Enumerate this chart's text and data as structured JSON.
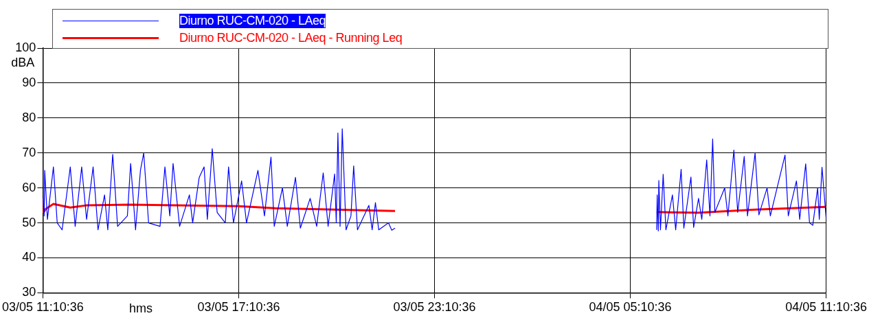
{
  "chart_data": {
    "type": "line",
    "xlabel": "hms",
    "ylabel": "dBA",
    "xlim": [
      "--05-03T11:10:36",
      "--05-04T11:10:36"
    ],
    "xticks": [
      {
        "value": "--05-03T11:10:36",
        "label": "03/05 11:10:36"
      },
      {
        "value": "--05-03T17:10:36",
        "label": "03/05 17:10:36"
      },
      {
        "value": "--05-03T23:10:36",
        "label": "03/05 23:10:36"
      },
      {
        "value": "--05-04T05:10:36",
        "label": "04/05 05:10:36"
      },
      {
        "value": "--05-04T11:10:36",
        "label": "04/05 11:10:36"
      }
    ],
    "ylim": [
      30,
      100
    ],
    "yticks": [
      30,
      40,
      50,
      60,
      70,
      80,
      90,
      100
    ],
    "grid": true,
    "legend": "top",
    "marker": "none",
    "line_style": "solid",
    "series": [
      {
        "name": "Diurno RUC-CM-020 - LAeq",
        "color": "#0000ff",
        "x": [
          "--05-03T11:10:36",
          "--05-03T11:13",
          "--05-03T11:14",
          "--05-03T11:19",
          "--05-03T11:30",
          "--05-03T11:37",
          "--05-03T11:46",
          "--05-03T12:01",
          "--05-03T12:10",
          "--05-03T12:22",
          "--05-03T12:31",
          "--05-03T12:43",
          "--05-03T12:52",
          "--05-03T13:04",
          "--05-03T13:10",
          "--05-03T13:19",
          "--05-03T13:28",
          "--05-03T13:46",
          "--05-03T13:52",
          "--05-03T14:01",
          "--05-03T14:10",
          "--05-03T14:16",
          "--05-03T14:25",
          "--05-03T14:46",
          "--05-03T14:55",
          "--05-03T15:04",
          "--05-03T15:10",
          "--05-03T15:22",
          "--05-03T15:40",
          "--05-03T15:46",
          "--05-03T15:58",
          "--05-03T16:07",
          "--05-03T16:13",
          "--05-03T16:22",
          "--05-03T16:31",
          "--05-03T16:46",
          "--05-03T16:52",
          "--05-03T17:01",
          "--05-03T17:16",
          "--05-03T17:25",
          "--05-03T17:46",
          "--05-03T17:58",
          "--05-03T18:10",
          "--05-03T18:16",
          "--05-03T18:31",
          "--05-03T18:40",
          "--05-03T18:55",
          "--05-03T19:04",
          "--05-03T19:22",
          "--05-03T19:34",
          "--05-03T19:46",
          "--05-03T19:55",
          "--05-03T20:07",
          "--05-03T20:10",
          "--05-03T20:13",
          "--05-03T20:17",
          "--05-03T20:21",
          "--05-03T20:28",
          "--05-03T20:37",
          "--05-03T20:42",
          "--05-03T20:49",
          "--05-03T21:10",
          "--05-03T21:16",
          "--05-03T21:22",
          "--05-03T21:28",
          "--05-03T21:46",
          "--05-03T21:52",
          "--05-03T21:58",
          "--05-04T01:58",
          "--05-04T05:59",
          "--05-04T06:00",
          "--05-04T06:02",
          "--05-04T06:03",
          "--05-04T06:06",
          "--05-04T06:11",
          "--05-04T06:16",
          "--05-04T06:28",
          "--05-04T06:34",
          "--05-04T06:44",
          "--05-04T06:49",
          "--05-04T07:02",
          "--05-04T07:07",
          "--05-04T07:16",
          "--05-04T07:22",
          "--05-04T07:31",
          "--05-04T07:37",
          "--05-04T07:42",
          "--05-04T07:46",
          "--05-04T08:04",
          "--05-04T08:10",
          "--05-04T08:21",
          "--05-04T08:28",
          "--05-04T08:40",
          "--05-04T08:46",
          "--05-04T09:00",
          "--05-04T09:07",
          "--05-04T09:22",
          "--05-04T09:28",
          "--05-04T09:55",
          "--05-04T10:01",
          "--05-04T10:16",
          "--05-04T10:22",
          "--05-04T10:33",
          "--05-04T10:40",
          "--05-04T10:46",
          "--05-04T10:55",
          "--05-04T10:58",
          "--05-04T11:03",
          "--05-04T11:10:36"
        ],
        "values": [
          57,
          52,
          65,
          51,
          66,
          50,
          48,
          66,
          49,
          66,
          51,
          66,
          48,
          58,
          48,
          69.6,
          49,
          52,
          67,
          48,
          65,
          70,
          50,
          49,
          66,
          52,
          67,
          49,
          58,
          50,
          63,
          66,
          51,
          71.2,
          53,
          50,
          66,
          50,
          62,
          50,
          65,
          52,
          68.8,
          49,
          60,
          49,
          63,
          48.5,
          57,
          49,
          64.3,
          49,
          64,
          50,
          75.7,
          49,
          76.9,
          48,
          52,
          66.3,
          48,
          55,
          48,
          55.8,
          48,
          50,
          47.9,
          48.5,
          null,
          48,
          58,
          47.7,
          62.1,
          48,
          63.9,
          48,
          58,
          48,
          65.3,
          48.5,
          63.1,
          48.7,
          57,
          51,
          68,
          52,
          74,
          53,
          60,
          52,
          70.8,
          53,
          69,
          52,
          70,
          52.3,
          60,
          52,
          69.4,
          52,
          62,
          51,
          66.9,
          50,
          49.3,
          60,
          51,
          65.9,
          51.3
        ]
      },
      {
        "name": "Diurno RUC-CM-020 - LAeq - Running Leq",
        "color": "#ff0000",
        "x": [
          "--05-03T11:10:36",
          "--05-03T11:12",
          "--05-03T11:16",
          "--05-03T11:30",
          "--05-03T12:01",
          "--05-03T12:30",
          "--05-03T13:51",
          "--05-03T15:16",
          "--05-03T17:11",
          "--05-03T18:18",
          "--05-03T21:58",
          "--05-04T01:58",
          "--05-04T05:59",
          "--05-04T06:28",
          "--05-04T07:16",
          "--05-04T09:00",
          "--05-04T11:10:36"
        ],
        "values": [
          57,
          53,
          54,
          55.4,
          54.4,
          55,
          55.2,
          55,
          54.8,
          54.2,
          53.4,
          null,
          53.1,
          53.0,
          52.9,
          53.8,
          54.6
        ]
      }
    ]
  }
}
